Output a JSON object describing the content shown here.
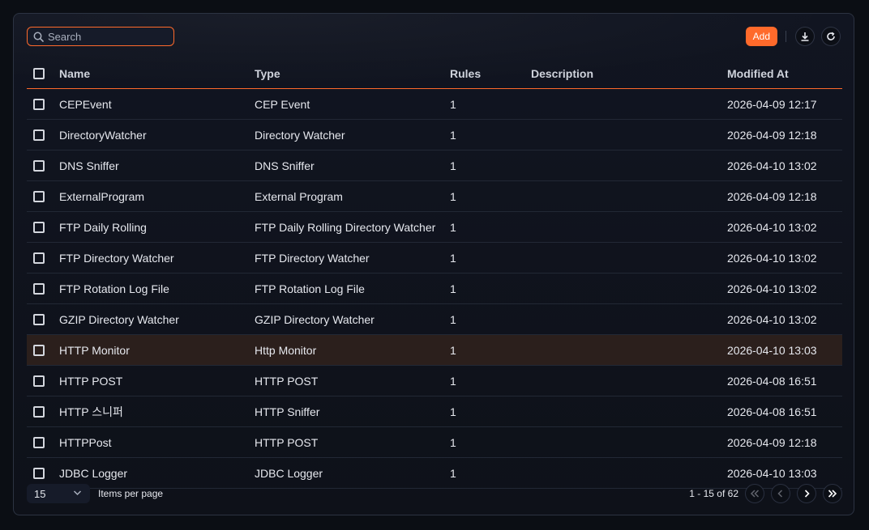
{
  "search": {
    "placeholder": "Search",
    "value": ""
  },
  "toolbar": {
    "add_label": "Add",
    "download_icon": "download-icon",
    "refresh_icon": "refresh-icon"
  },
  "colors": {
    "accent": "#ff6a2b",
    "highlight_row": "#2b1f1c"
  },
  "table": {
    "columns": [
      "Name",
      "Type",
      "Rules",
      "Description",
      "Modified At"
    ],
    "rows": [
      {
        "name": "CEPEvent",
        "type": "CEP Event",
        "rules": "1",
        "description": "",
        "modified": "2026-04-09 12:17"
      },
      {
        "name": "DirectoryWatcher",
        "type": "Directory Watcher",
        "rules": "1",
        "description": "",
        "modified": "2026-04-09 12:18"
      },
      {
        "name": "DNS Sniffer",
        "type": "DNS Sniffer",
        "rules": "1",
        "description": "",
        "modified": "2026-04-10 13:02"
      },
      {
        "name": "ExternalProgram",
        "type": "External Program",
        "rules": "1",
        "description": "",
        "modified": "2026-04-09 12:18"
      },
      {
        "name": "FTP Daily Rolling",
        "type": "FTP Daily Rolling Directory Watcher",
        "rules": "1",
        "description": "",
        "modified": "2026-04-10 13:02"
      },
      {
        "name": "FTP Directory Watcher",
        "type": "FTP Directory Watcher",
        "rules": "1",
        "description": "",
        "modified": "2026-04-10 13:02"
      },
      {
        "name": "FTP Rotation Log File",
        "type": "FTP Rotation Log File",
        "rules": "1",
        "description": "",
        "modified": "2026-04-10 13:02"
      },
      {
        "name": "GZIP Directory Watcher",
        "type": "GZIP Directory Watcher",
        "rules": "1",
        "description": "",
        "modified": "2026-04-10 13:02"
      },
      {
        "name": "HTTP Monitor",
        "type": "Http Monitor",
        "rules": "1",
        "description": "",
        "modified": "2026-04-10 13:03",
        "highlighted": true
      },
      {
        "name": "HTTP POST",
        "type": "HTTP POST",
        "rules": "1",
        "description": "",
        "modified": "2026-04-08 16:51"
      },
      {
        "name": "HTTP 스니퍼",
        "type": "HTTP Sniffer",
        "rules": "1",
        "description": "",
        "modified": "2026-04-08 16:51"
      },
      {
        "name": "HTTPPost",
        "type": "HTTP POST",
        "rules": "1",
        "description": "",
        "modified": "2026-04-09 12:18"
      },
      {
        "name": "JDBC Logger",
        "type": "JDBC Logger",
        "rules": "1",
        "description": "",
        "modified": "2026-04-10 13:03"
      }
    ]
  },
  "footer": {
    "page_size": "15",
    "items_per_page_label": "Items per page",
    "range_label": "1 - 15 of 62"
  }
}
